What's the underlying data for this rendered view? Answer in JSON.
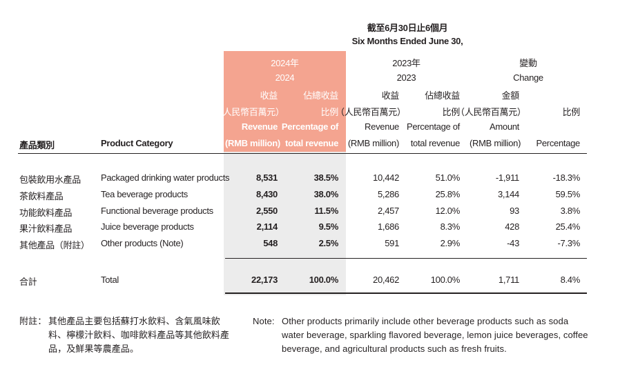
{
  "header": {
    "period_zh": "截至6月30日止6個月",
    "period_en": "Six Months Ended June 30,",
    "y2024_zh": "2024年",
    "y2024": "2024",
    "y2023_zh": "2023年",
    "y2023": "2023",
    "change_zh": "變動",
    "change_en": "Change",
    "rev_zh": "收益",
    "rev_zh2": "（人民幣百萬元）",
    "rev_en": "Revenue",
    "rev_en2": "(RMB million)",
    "pct_zh": "佔總收益",
    "pct_zh2": "比例",
    "pct_en": "Percentage of",
    "pct_en2": "total revenue",
    "amt_zh": "金額",
    "amt_zh2": "（人民幣百萬元）",
    "amt_en": "Amount",
    "amt_en2": "(RMB million)",
    "ratio_zh": "比例",
    "percentage_en": "Percentage",
    "cat_zh": "產品類別",
    "cat_en": "Product Category"
  },
  "rows": [
    {
      "zh": "包裝飲用水產品",
      "en": "Packaged drinking water products",
      "r24": "8,531",
      "p24": "38.5%",
      "r23": "10,442",
      "p23": "51.0%",
      "amt": "-1,911",
      "pct": "-18.3%"
    },
    {
      "zh": "茶飲料產品",
      "en": "Tea beverage products",
      "r24": "8,430",
      "p24": "38.0%",
      "r23": "5,286",
      "p23": "25.8%",
      "amt": "3,144",
      "pct": "59.5%"
    },
    {
      "zh": "功能飲料產品",
      "en": "Functional beverage products",
      "r24": "2,550",
      "p24": "11.5%",
      "r23": "2,457",
      "p23": "12.0%",
      "amt": "93",
      "pct": "3.8%"
    },
    {
      "zh": "果汁飲料產品",
      "en": "Juice beverage products",
      "r24": "2,114",
      "p24": "9.5%",
      "r23": "1,686",
      "p23": "8.3%",
      "amt": "428",
      "pct": "25.4%"
    },
    {
      "zh": "其他產品（附註）",
      "en": "Other products (Note)",
      "r24": "548",
      "p24": "2.5%",
      "r23": "591",
      "p23": "2.9%",
      "amt": "-43",
      "pct": "-7.3%"
    }
  ],
  "total": {
    "zh": "合計",
    "en": "Total",
    "r24": "22,173",
    "p24": "100.0%",
    "r23": "20,462",
    "p23": "100.0%",
    "amt": "1,711",
    "pct": "8.4%"
  },
  "notes": {
    "zh_label": "附註：",
    "zh_line1": "其他產品主要包括蘇打水飲料、含氣風味飲",
    "zh_line2": "料、檸檬汁飲料、咖啡飲料產品等其他飲料產",
    "zh_line3": "品，及鮮果等農產品。",
    "en_label": "Note:",
    "en_line1": "Other products primarily include other beverage products such as soda",
    "en_line2": "water beverage, sparkling flavored beverage, lemon juice beverages, coffee",
    "en_line3": "beverage, and agricultural products such as fresh fruits."
  }
}
